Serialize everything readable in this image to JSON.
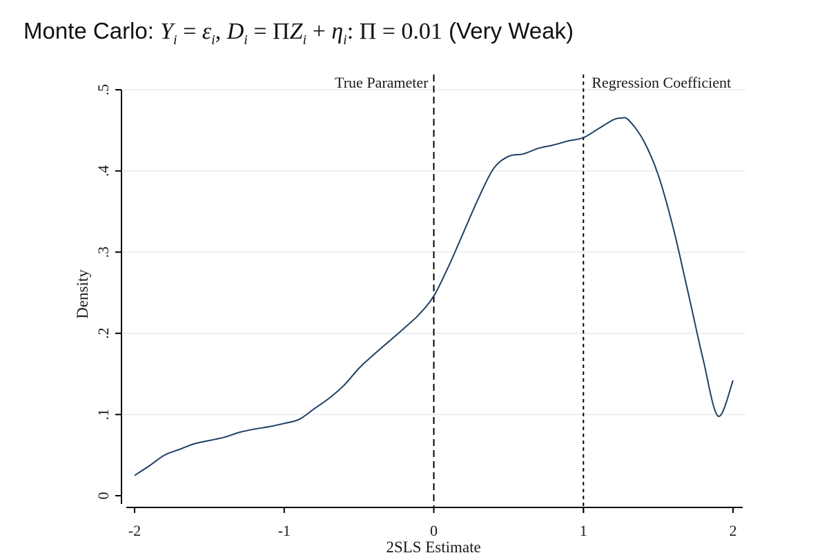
{
  "title": {
    "prefix": "Monte Carlo: ",
    "suffix": " (Very Weak)"
  },
  "colors": {
    "plot_background": "#ffffff",
    "grid": "#e6eaee",
    "curve": "#1f3f63",
    "axis": "#000000"
  },
  "chart_data": {
    "type": "line",
    "title": "Monte Carlo: Y_i = ε_i, D_i = ΠZ_i + η_i: Π = 0.01 (Very Weak)",
    "xlabel": "2SLS Estimate",
    "ylabel": "Density",
    "xlim": [
      -2,
      2
    ],
    "ylim": [
      0,
      0.5
    ],
    "grid": true,
    "x_ticks": [
      {
        "value": -2,
        "label": "-2"
      },
      {
        "value": -1,
        "label": "-1"
      },
      {
        "value": 0,
        "label": "0"
      },
      {
        "value": 1,
        "label": "1"
      },
      {
        "value": 2,
        "label": "2"
      }
    ],
    "y_ticks": [
      {
        "value": 0,
        "label": "0"
      },
      {
        "value": 0.1,
        "label": ".1"
      },
      {
        "value": 0.2,
        "label": ".2"
      },
      {
        "value": 0.3,
        "label": ".3"
      },
      {
        "value": 0.4,
        "label": ".4"
      },
      {
        "value": 0.5,
        "label": ".5"
      }
    ],
    "series": [
      {
        "x": [
          -2.0,
          -1.9,
          -1.8,
          -1.7,
          -1.6,
          -1.5,
          -1.4,
          -1.3,
          -1.2,
          -1.1,
          -1.0,
          -0.9,
          -0.8,
          -0.7,
          -0.6,
          -0.5,
          -0.4,
          -0.3,
          -0.2,
          -0.1,
          0.0,
          0.1,
          0.2,
          0.3,
          0.4,
          0.5,
          0.6,
          0.7,
          0.8,
          0.9,
          1.0,
          1.1,
          1.2,
          1.25,
          1.3,
          1.4,
          1.5,
          1.6,
          1.7,
          1.8,
          1.9,
          2.0
        ],
        "y": [
          0.025,
          0.037,
          0.05,
          0.057,
          0.064,
          0.068,
          0.072,
          0.078,
          0.082,
          0.085,
          0.089,
          0.094,
          0.107,
          0.12,
          0.136,
          0.157,
          0.174,
          0.19,
          0.206,
          0.223,
          0.246,
          0.283,
          0.325,
          0.367,
          0.403,
          0.418,
          0.421,
          0.428,
          0.432,
          0.437,
          0.441,
          0.452,
          0.463,
          0.465,
          0.463,
          0.438,
          0.395,
          0.33,
          0.25,
          0.168,
          0.098,
          0.142
        ]
      }
    ],
    "reference_lines": [
      {
        "x": 0,
        "label": "True Parameter",
        "style": "dashed"
      },
      {
        "x": 1,
        "label": "Regression Coefficient",
        "style": "dotted"
      }
    ]
  }
}
